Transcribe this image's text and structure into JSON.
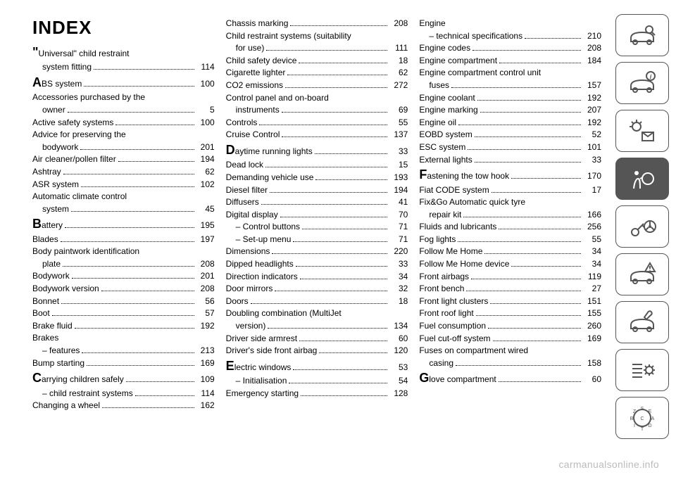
{
  "title": "INDEX",
  "footer": "carmanualsonline.info",
  "columns": [
    [
      {
        "label": "\"Universal\" child restraint system fitting",
        "page": "114",
        "dropcap": "\"",
        "rest": "Universal\" child restraint",
        "cont": "system fitting"
      },
      {
        "label": "ABS system",
        "page": "100",
        "dropcap": "A",
        "rest": "BS system"
      },
      {
        "label": "Accessories purchased by the owner",
        "page": "5",
        "cont": "owner",
        "rest_full": "Accessories purchased by the"
      },
      {
        "label": "Active safety systems",
        "page": "100"
      },
      {
        "label": "Advice for preserving the bodywork",
        "page": "201",
        "cont": "bodywork",
        "rest_full": "Advice for preserving the"
      },
      {
        "label": "Air cleaner/pollen filter",
        "page": "194"
      },
      {
        "label": "Ashtray",
        "page": "62"
      },
      {
        "label": "ASR system",
        "page": "102"
      },
      {
        "label": "Automatic climate control system",
        "page": "45",
        "cont": "system",
        "rest_full": "Automatic climate control"
      },
      {
        "label": "Battery",
        "page": "195",
        "dropcap": "B",
        "rest": "attery"
      },
      {
        "label": "Blades",
        "page": "197"
      },
      {
        "label": "Body paintwork identification plate",
        "page": "208",
        "cont": "plate",
        "rest_full": "Body paintwork identification"
      },
      {
        "label": "Bodywork",
        "page": "201"
      },
      {
        "label": "Bodywork version",
        "page": "208"
      },
      {
        "label": "Bonnet",
        "page": "56"
      },
      {
        "label": "Boot",
        "page": "57"
      },
      {
        "label": "Brake fluid",
        "page": "192"
      },
      {
        "label": "Brakes",
        "page": "",
        "nodots": true
      },
      {
        "label": "– features",
        "page": "213",
        "indent": true
      },
      {
        "label": "Bump starting",
        "page": "169"
      },
      {
        "label": "Carrying children safely",
        "page": "109",
        "dropcap": "C",
        "rest": "arrying children safely"
      },
      {
        "label": "– child restraint systems",
        "page": "114",
        "indent": true
      },
      {
        "label": "Changing a wheel",
        "page": "162"
      }
    ],
    [
      {
        "label": "Chassis marking",
        "page": "208"
      },
      {
        "label": "Child restraint systems (suitability for use)",
        "page": "111",
        "cont": "for use)",
        "rest_full": "Child restraint systems (suitability"
      },
      {
        "label": "Child safety device",
        "page": "18"
      },
      {
        "label": "Cigarette lighter",
        "page": "62"
      },
      {
        "label": "CO2 emissions",
        "page": "272"
      },
      {
        "label": "Control panel and on-board instruments",
        "page": "69",
        "cont": "instruments",
        "rest_full": "Control panel and on-board"
      },
      {
        "label": "Controls",
        "page": "55"
      },
      {
        "label": "Cruise Control",
        "page": "137"
      },
      {
        "label": "Daytime running lights",
        "page": "33",
        "dropcap": "D",
        "rest": "aytime running lights"
      },
      {
        "label": "Dead lock",
        "page": "15"
      },
      {
        "label": "Demanding vehicle use",
        "page": "193"
      },
      {
        "label": "Diesel filter",
        "page": "194"
      },
      {
        "label": "Diffusers",
        "page": "41"
      },
      {
        "label": "Digital display",
        "page": "70"
      },
      {
        "label": "– Control buttons",
        "page": "71",
        "indent": true
      },
      {
        "label": "– Set-up menu",
        "page": "71",
        "indent": true
      },
      {
        "label": "Dimensions",
        "page": "220"
      },
      {
        "label": "Dipped headlights",
        "page": "33"
      },
      {
        "label": "Direction indicators",
        "page": "34"
      },
      {
        "label": "Door mirrors",
        "page": "32"
      },
      {
        "label": "Doors",
        "page": "18"
      },
      {
        "label": "Doubling combination (MultiJet version)",
        "page": "134",
        "cont": "version)",
        "rest_full": "Doubling combination (MultiJet"
      },
      {
        "label": "Driver side armrest",
        "page": "60"
      },
      {
        "label": "Driver's side front airbag",
        "page": "120"
      },
      {
        "label": "Electric windows",
        "page": "53",
        "dropcap": "E",
        "rest": "lectric windows"
      },
      {
        "label": "– Initialisation",
        "page": "54",
        "indent": true
      },
      {
        "label": "Emergency starting",
        "page": "128"
      }
    ],
    [
      {
        "label": "Engine",
        "page": "",
        "nodots": true
      },
      {
        "label": "– technical specifications",
        "page": "210",
        "indent": true
      },
      {
        "label": "Engine codes",
        "page": "208"
      },
      {
        "label": "Engine compartment",
        "page": "184"
      },
      {
        "label": "Engine compartment control unit fuses",
        "page": "157",
        "cont": "fuses",
        "rest_full": "Engine compartment control unit"
      },
      {
        "label": "Engine coolant",
        "page": "192"
      },
      {
        "label": "Engine marking",
        "page": "207"
      },
      {
        "label": "Engine oil",
        "page": "192"
      },
      {
        "label": "EOBD system",
        "page": "52"
      },
      {
        "label": "ESC system",
        "page": "101"
      },
      {
        "label": "External lights",
        "page": "33"
      },
      {
        "label": "Fastening the tow hook",
        "page": "170",
        "dropcap": "F",
        "rest": "astening the tow hook"
      },
      {
        "label": "Fiat CODE system",
        "page": "17"
      },
      {
        "label": "Fix&Go Automatic quick tyre repair kit",
        "page": "166",
        "cont": "repair kit",
        "rest_full": "Fix&Go Automatic quick tyre"
      },
      {
        "label": "Fluids and lubricants",
        "page": "256"
      },
      {
        "label": "Fog lights",
        "page": "55"
      },
      {
        "label": "Follow Me Home",
        "page": "34"
      },
      {
        "label": "Follow Me Home device",
        "page": "34"
      },
      {
        "label": "Front airbags",
        "page": "119"
      },
      {
        "label": "Front bench",
        "page": "27"
      },
      {
        "label": "Front light clusters",
        "page": "151"
      },
      {
        "label": "Front roof light",
        "page": "155"
      },
      {
        "label": "Fuel consumption",
        "page": "260"
      },
      {
        "label": "Fuel cut-off system",
        "page": "169"
      },
      {
        "label": "Fuses on compartment wired casing",
        "page": "158",
        "cont": "casing",
        "rest_full": "Fuses on compartment wired"
      },
      {
        "label": "Glove compartment",
        "page": "60",
        "dropcap": "G",
        "rest": "love compartment"
      }
    ]
  ],
  "sidebar_icons": [
    "car-search",
    "car-info",
    "dash-light",
    "airbag",
    "key-wheel",
    "car-warning",
    "car-wrench",
    "list-gear",
    "compass"
  ]
}
